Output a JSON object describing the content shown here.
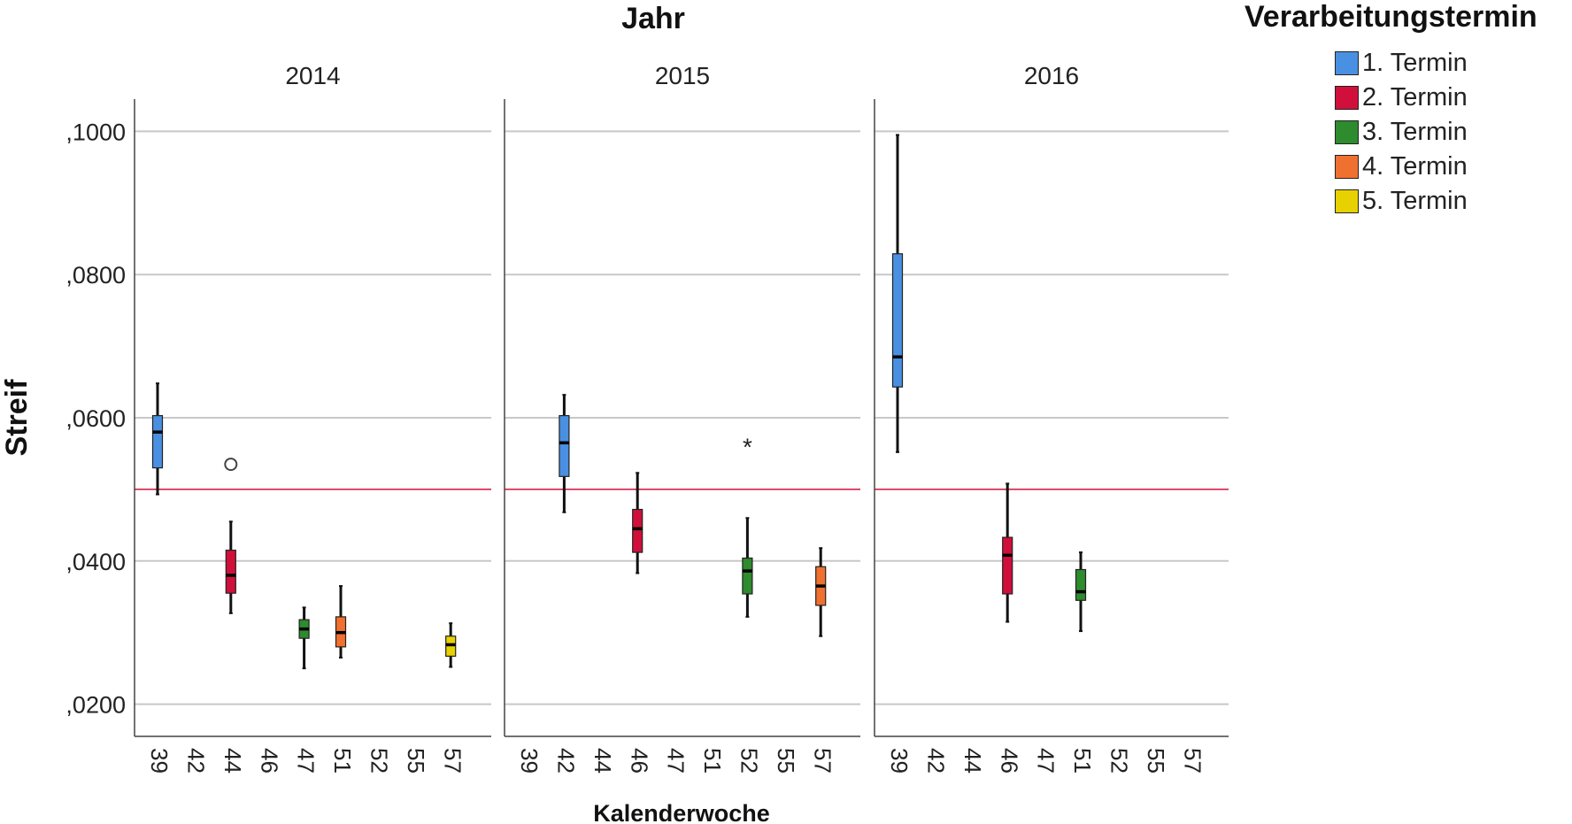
{
  "chart_data": {
    "type": "boxplot",
    "title": "Jahr",
    "xlabel": "Kalenderwoche",
    "ylabel": "Streif",
    "ylim": [
      0.0155,
      0.1045
    ],
    "yticks": [
      0.02,
      0.04,
      0.06,
      0.08,
      0.1
    ],
    "ytick_labels": [
      ",0200",
      ",0400",
      ",0600",
      ",0800",
      ",1000"
    ],
    "reference_line": 0.05,
    "categories": [
      "39",
      "42",
      "44",
      "46",
      "47",
      "51",
      "52",
      "55",
      "57"
    ],
    "panels": [
      {
        "name": "2014",
        "boxes": [
          {
            "week": "39",
            "series": "1. Termin",
            "whisker_low": 0.0493,
            "q1": 0.053,
            "median": 0.058,
            "q3": 0.0603,
            "whisker_high": 0.0648
          },
          {
            "week": "44",
            "series": "2. Termin",
            "whisker_low": 0.0327,
            "q1": 0.0355,
            "median": 0.038,
            "q3": 0.0415,
            "whisker_high": 0.0455
          },
          {
            "week": "47",
            "series": "3. Termin",
            "whisker_low": 0.025,
            "q1": 0.0292,
            "median": 0.0305,
            "q3": 0.0318,
            "whisker_high": 0.0335
          },
          {
            "week": "51",
            "series": "4. Termin",
            "whisker_low": 0.0265,
            "q1": 0.028,
            "median": 0.03,
            "q3": 0.0322,
            "whisker_high": 0.0365
          },
          {
            "week": "57",
            "series": "5. Termin",
            "whisker_low": 0.0252,
            "q1": 0.0267,
            "median": 0.0283,
            "q3": 0.0295,
            "whisker_high": 0.0313
          }
        ],
        "outliers": [
          {
            "week": "44",
            "value": 0.0535,
            "marker": "circle"
          }
        ]
      },
      {
        "name": "2015",
        "boxes": [
          {
            "week": "42",
            "series": "1. Termin",
            "whisker_low": 0.0468,
            "q1": 0.0518,
            "median": 0.0565,
            "q3": 0.0603,
            "whisker_high": 0.0632
          },
          {
            "week": "46",
            "series": "2. Termin",
            "whisker_low": 0.0383,
            "q1": 0.0412,
            "median": 0.0445,
            "q3": 0.0472,
            "whisker_high": 0.0523
          },
          {
            "week": "52",
            "series": "3. Termin",
            "whisker_low": 0.0322,
            "q1": 0.0354,
            "median": 0.0386,
            "q3": 0.0404,
            "whisker_high": 0.046
          },
          {
            "week": "57",
            "series": "4. Termin",
            "whisker_low": 0.0295,
            "q1": 0.0338,
            "median": 0.0365,
            "q3": 0.0392,
            "whisker_high": 0.0418
          }
        ],
        "outliers": [
          {
            "week": "52",
            "value": 0.0565,
            "marker": "asterisk"
          }
        ]
      },
      {
        "name": "2016",
        "boxes": [
          {
            "week": "39",
            "series": "1. Termin",
            "whisker_low": 0.0552,
            "q1": 0.0643,
            "median": 0.0685,
            "q3": 0.0829,
            "whisker_high": 0.0995
          },
          {
            "week": "46",
            "series": "2. Termin",
            "whisker_low": 0.0315,
            "q1": 0.0354,
            "median": 0.0408,
            "q3": 0.0433,
            "whisker_high": 0.0508
          },
          {
            "week": "51",
            "series": "3. Termin",
            "whisker_low": 0.0302,
            "q1": 0.0345,
            "median": 0.0357,
            "q3": 0.0388,
            "whisker_high": 0.0412
          }
        ],
        "outliers": []
      }
    ],
    "legend": {
      "title": "Verarbeitungstermin",
      "placement": "right",
      "entries": [
        {
          "name": "1. Termin",
          "color": "#4a90e2"
        },
        {
          "name": "2. Termin",
          "color": "#d0103a"
        },
        {
          "name": "3. Termin",
          "color": "#2e8b2e"
        },
        {
          "name": "4. Termin",
          "color": "#f07030"
        },
        {
          "name": "5. Termin",
          "color": "#e8d100"
        }
      ]
    },
    "colors": {
      "gridline": "#c8c8c8",
      "reference_line": "#d0103a",
      "axis": "#444444",
      "text": "#222222"
    }
  }
}
